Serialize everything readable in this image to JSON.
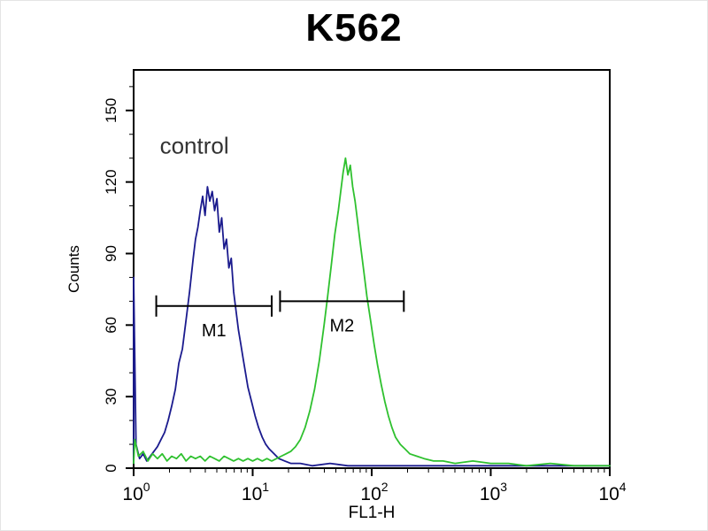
{
  "chart_data": {
    "type": "line",
    "subtype": "flow-cytometry-histogram",
    "title": "K562",
    "xlabel": "FL1-H",
    "ylabel": "Counts",
    "x_scale": "log10",
    "x_tick_base": "10",
    "x_ticks_exponents": [
      0,
      1,
      2,
      3,
      4
    ],
    "xlim_log": [
      0,
      4
    ],
    "y_ticks": [
      0,
      30,
      60,
      90,
      120,
      150
    ],
    "ylim": [
      0,
      167
    ],
    "grid": false,
    "legend": "none",
    "background": "#ffffff",
    "frame_color": "#000000",
    "annotations": [
      {
        "text": "control",
        "log_x": 0.22,
        "y_counts": 132
      }
    ],
    "markers": [
      {
        "label": "M1",
        "y_counts": 68,
        "log_x_start": 0.19,
        "log_x_end": 1.16
      },
      {
        "label": "M2",
        "y_counts": 70,
        "log_x_start": 1.23,
        "log_x_end": 2.27
      }
    ],
    "series": [
      {
        "name": "control",
        "color": "#1b1b8e",
        "points": [
          [
            0.0,
            2
          ],
          [
            0.0,
            80
          ],
          [
            0.02,
            10
          ],
          [
            0.05,
            4
          ],
          [
            0.08,
            6
          ],
          [
            0.11,
            3
          ],
          [
            0.14,
            5
          ],
          [
            0.17,
            7
          ],
          [
            0.2,
            9
          ],
          [
            0.23,
            12
          ],
          [
            0.26,
            15
          ],
          [
            0.29,
            20
          ],
          [
            0.32,
            26
          ],
          [
            0.35,
            33
          ],
          [
            0.38,
            44
          ],
          [
            0.41,
            50
          ],
          [
            0.44,
            62
          ],
          [
            0.47,
            74
          ],
          [
            0.5,
            88
          ],
          [
            0.52,
            96
          ],
          [
            0.54,
            101
          ],
          [
            0.56,
            108
          ],
          [
            0.58,
            114
          ],
          [
            0.6,
            106
          ],
          [
            0.62,
            118
          ],
          [
            0.64,
            112
          ],
          [
            0.66,
            116
          ],
          [
            0.68,
            108
          ],
          [
            0.7,
            113
          ],
          [
            0.72,
            99
          ],
          [
            0.74,
            105
          ],
          [
            0.76,
            92
          ],
          [
            0.78,
            96
          ],
          [
            0.8,
            84
          ],
          [
            0.82,
            88
          ],
          [
            0.84,
            74
          ],
          [
            0.86,
            66
          ],
          [
            0.88,
            58
          ],
          [
            0.9,
            52
          ],
          [
            0.92,
            46
          ],
          [
            0.94,
            40
          ],
          [
            0.96,
            34
          ],
          [
            0.99,
            28
          ],
          [
            1.02,
            22
          ],
          [
            1.05,
            17
          ],
          [
            1.08,
            13
          ],
          [
            1.11,
            10
          ],
          [
            1.14,
            8
          ],
          [
            1.18,
            6
          ],
          [
            1.22,
            4
          ],
          [
            1.27,
            3
          ],
          [
            1.32,
            2
          ],
          [
            1.4,
            2
          ],
          [
            1.5,
            1
          ],
          [
            1.65,
            2
          ],
          [
            1.8,
            1
          ],
          [
            2.0,
            1
          ],
          [
            2.2,
            1
          ],
          [
            2.45,
            1
          ],
          [
            2.7,
            1
          ],
          [
            3.0,
            1
          ],
          [
            3.3,
            1
          ],
          [
            3.6,
            1
          ],
          [
            4.0,
            1
          ]
        ]
      },
      {
        "name": "green",
        "color": "#2fc12f",
        "points": [
          [
            0.0,
            2
          ],
          [
            0.01,
            12
          ],
          [
            0.04,
            5
          ],
          [
            0.08,
            7
          ],
          [
            0.12,
            3
          ],
          [
            0.16,
            6
          ],
          [
            0.2,
            4
          ],
          [
            0.24,
            6
          ],
          [
            0.28,
            3
          ],
          [
            0.32,
            5
          ],
          [
            0.36,
            4
          ],
          [
            0.4,
            6
          ],
          [
            0.44,
            3
          ],
          [
            0.48,
            5
          ],
          [
            0.52,
            4
          ],
          [
            0.56,
            5
          ],
          [
            0.6,
            3
          ],
          [
            0.64,
            5
          ],
          [
            0.68,
            4
          ],
          [
            0.72,
            3
          ],
          [
            0.76,
            5
          ],
          [
            0.8,
            4
          ],
          [
            0.84,
            3
          ],
          [
            0.88,
            4
          ],
          [
            0.92,
            3
          ],
          [
            0.96,
            4
          ],
          [
            1.0,
            3
          ],
          [
            1.04,
            4
          ],
          [
            1.08,
            3
          ],
          [
            1.12,
            4
          ],
          [
            1.16,
            3
          ],
          [
            1.2,
            4
          ],
          [
            1.24,
            5
          ],
          [
            1.28,
            6
          ],
          [
            1.32,
            7
          ],
          [
            1.36,
            9
          ],
          [
            1.4,
            12
          ],
          [
            1.44,
            17
          ],
          [
            1.48,
            24
          ],
          [
            1.52,
            33
          ],
          [
            1.56,
            45
          ],
          [
            1.6,
            60
          ],
          [
            1.63,
            72
          ],
          [
            1.66,
            85
          ],
          [
            1.69,
            98
          ],
          [
            1.72,
            108
          ],
          [
            1.74,
            116
          ],
          [
            1.76,
            124
          ],
          [
            1.78,
            130
          ],
          [
            1.8,
            123
          ],
          [
            1.82,
            127
          ],
          [
            1.84,
            118
          ],
          [
            1.86,
            112
          ],
          [
            1.88,
            104
          ],
          [
            1.9,
            96
          ],
          [
            1.93,
            84
          ],
          [
            1.96,
            72
          ],
          [
            1.99,
            62
          ],
          [
            2.02,
            52
          ],
          [
            2.05,
            43
          ],
          [
            2.08,
            35
          ],
          [
            2.11,
            28
          ],
          [
            2.14,
            22
          ],
          [
            2.17,
            17
          ],
          [
            2.2,
            13
          ],
          [
            2.24,
            10
          ],
          [
            2.28,
            8
          ],
          [
            2.32,
            6
          ],
          [
            2.38,
            5
          ],
          [
            2.44,
            4
          ],
          [
            2.52,
            3
          ],
          [
            2.6,
            3
          ],
          [
            2.7,
            2
          ],
          [
            2.85,
            3
          ],
          [
            3.0,
            2
          ],
          [
            3.15,
            2
          ],
          [
            3.3,
            1
          ],
          [
            3.5,
            2
          ],
          [
            3.7,
            1
          ],
          [
            4.0,
            1
          ]
        ]
      }
    ]
  }
}
